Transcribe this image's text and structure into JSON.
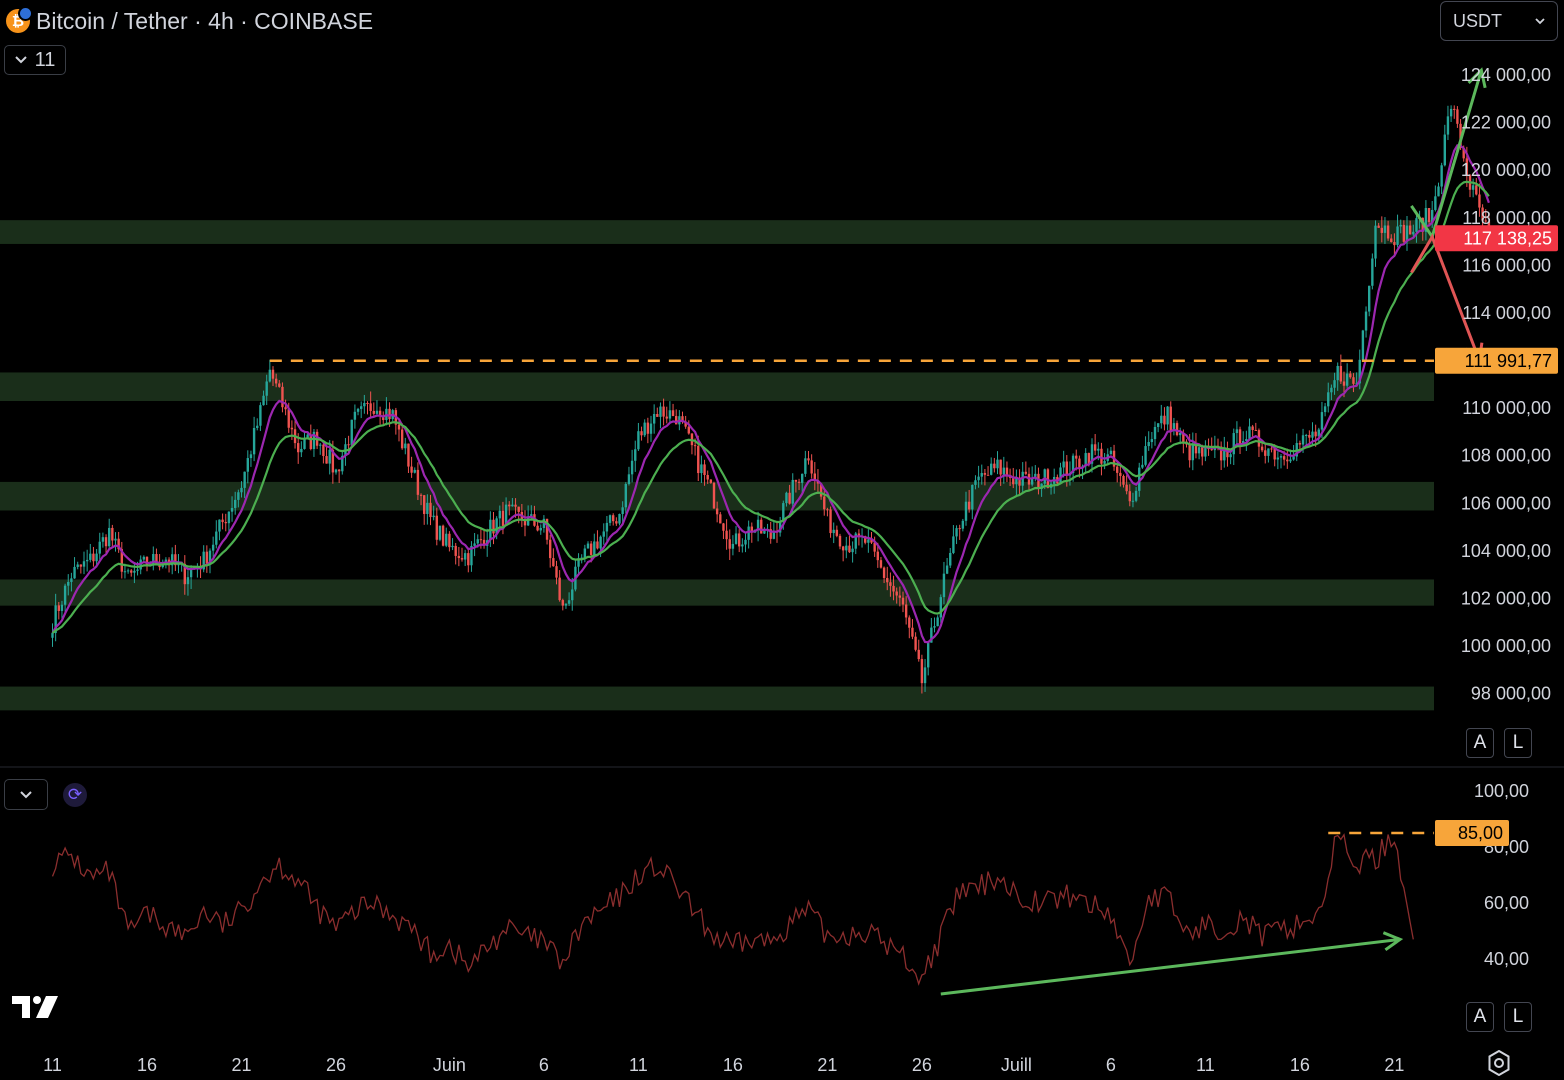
{
  "header": {
    "symbol_title": "Bitcoin / Tether · 4h · COINBASE",
    "indicator_count": "11",
    "currency": "USDT",
    "coin_icon": "bitcoin-icon",
    "coin_glyph": "₿"
  },
  "axis_buttons": {
    "auto": "A",
    "log": "L"
  },
  "colors": {
    "up": "#26a69a",
    "down": "#ef5350",
    "zone": "#1a2e1a",
    "ma_fast": "#9c27b0",
    "ma_slow": "#4caf50",
    "rsi": "#8b2e2e",
    "orange": "#f7a53a",
    "price_badge": "#f23645"
  },
  "chart_data": [
    {
      "type": "candlestick",
      "title": "Bitcoin / Tether · 4h · COINBASE",
      "ylim": [
        96500,
        125500
      ],
      "y_ticks": [
        "124 000,00",
        "122 000,00",
        "120 000,00",
        "118 000,00",
        "116 000,00",
        "114 000,00",
        "112 000,00",
        "110 000,00",
        "108 000,00",
        "106 000,00",
        "104 000,00",
        "102 000,00",
        "100 000,00",
        "98 000,00"
      ],
      "y_tick_values": [
        124000,
        122000,
        120000,
        118000,
        116000,
        114000,
        112000,
        110000,
        108000,
        106000,
        104000,
        102000,
        100000,
        98000
      ],
      "x_ticks": [
        "11",
        "16",
        "21",
        "26",
        "Juin",
        "6",
        "11",
        "16",
        "21",
        "26",
        "Juill",
        "6",
        "11",
        "16",
        "21"
      ],
      "x_tick_days": [
        0,
        5,
        10,
        15,
        21,
        26,
        31,
        36,
        41,
        46,
        51,
        56,
        61,
        66,
        71
      ],
      "x_start": "May 11",
      "last_price": 117138.25,
      "last_price_label": "117 138,25",
      "resistance_level": 111991.77,
      "resistance_label": "111 991,77",
      "resistance_start_day": 11.5,
      "zones": [
        [
          116900,
          117900
        ],
        [
          110300,
          111500
        ],
        [
          105700,
          106900
        ],
        [
          101700,
          102800
        ],
        [
          97300,
          98300
        ]
      ],
      "price_path": [
        [
          0,
          101000
        ],
        [
          1,
          103000
        ],
        [
          2,
          103600
        ],
        [
          3,
          104800
        ],
        [
          4,
          102800
        ],
        [
          5,
          103500
        ],
        [
          6,
          103700
        ],
        [
          7,
          103000
        ],
        [
          8,
          103600
        ],
        [
          9,
          105200
        ],
        [
          10,
          106800
        ],
        [
          11,
          109800
        ],
        [
          11.5,
          111600
        ],
        [
          12,
          110500
        ],
        [
          13,
          108300
        ],
        [
          14,
          108800
        ],
        [
          15,
          107300
        ],
        [
          16,
          109500
        ],
        [
          17,
          110200
        ],
        [
          18,
          109700
        ],
        [
          19,
          107400
        ],
        [
          20,
          105300
        ],
        [
          21,
          104100
        ],
        [
          22,
          103800
        ],
        [
          23,
          104800
        ],
        [
          24,
          105600
        ],
        [
          25,
          105300
        ],
        [
          26,
          105000
        ],
        [
          27,
          101500
        ],
        [
          28,
          103600
        ],
        [
          29,
          104600
        ],
        [
          30,
          105600
        ],
        [
          31,
          108800
        ],
        [
          32,
          109900
        ],
        [
          33,
          109700
        ],
        [
          34,
          108000
        ],
        [
          35,
          106200
        ],
        [
          36,
          104200
        ],
        [
          37,
          105000
        ],
        [
          38,
          104600
        ],
        [
          39,
          106300
        ],
        [
          40,
          108100
        ],
        [
          41,
          105300
        ],
        [
          42,
          104300
        ],
        [
          43,
          104400
        ],
        [
          44,
          103000
        ],
        [
          45,
          101600
        ],
        [
          46,
          98500
        ],
        [
          47,
          102200
        ],
        [
          48,
          105200
        ],
        [
          49,
          107000
        ],
        [
          50,
          107500
        ],
        [
          51,
          107000
        ],
        [
          52,
          106900
        ],
        [
          53,
          107200
        ],
        [
          54,
          107600
        ],
        [
          55,
          108200
        ],
        [
          56,
          107800
        ],
        [
          57,
          106000
        ],
        [
          58,
          108800
        ],
        [
          59,
          109700
        ],
        [
          60,
          108200
        ],
        [
          61,
          108000
        ],
        [
          62,
          108100
        ],
        [
          63,
          109000
        ],
        [
          64,
          108500
        ],
        [
          65,
          108000
        ],
        [
          66,
          108500
        ],
        [
          67,
          109000
        ],
        [
          68,
          111500
        ],
        [
          69,
          111000
        ],
        [
          70,
          117800
        ],
        [
          71,
          117300
        ],
        [
          72,
          117500
        ],
        [
          73,
          118200
        ],
        [
          74,
          122800
        ],
        [
          75,
          119400
        ],
        [
          76,
          117138
        ]
      ],
      "annotations": [
        {
          "type": "arrow",
          "color": "green",
          "from": [
            71.9,
            118500
          ],
          "via": [
            73,
            117200
          ],
          "to": [
            75.6,
            124200
          ]
        },
        {
          "type": "arrow",
          "color": "red",
          "from": [
            71.9,
            115700
          ],
          "via": [
            73,
            117200
          ],
          "to": [
            75.5,
            112000
          ]
        }
      ]
    },
    {
      "type": "line",
      "title": "",
      "ylim": [
        26,
        106
      ],
      "y_ticks": [
        "100,00",
        "80,00",
        "60,00",
        "40,00"
      ],
      "y_tick_values": [
        100,
        80,
        60,
        40
      ],
      "level": 85,
      "level_label": "85,00",
      "level_start_day": 67.5,
      "rsi_path": [
        [
          0,
          74
        ],
        [
          1,
          77
        ],
        [
          2,
          69
        ],
        [
          3,
          71
        ],
        [
          4,
          49
        ],
        [
          5,
          56
        ],
        [
          6,
          52
        ],
        [
          7,
          48
        ],
        [
          8,
          57
        ],
        [
          9,
          52
        ],
        [
          10,
          57
        ],
        [
          11,
          68
        ],
        [
          12,
          74
        ],
        [
          13,
          68
        ],
        [
          14,
          58
        ],
        [
          15,
          51
        ],
        [
          16,
          57
        ],
        [
          17,
          60
        ],
        [
          18,
          56
        ],
        [
          19,
          51
        ],
        [
          20,
          42
        ],
        [
          21,
          45
        ],
        [
          22,
          37
        ],
        [
          23,
          44
        ],
        [
          24,
          51
        ],
        [
          25,
          48
        ],
        [
          26,
          46
        ],
        [
          27,
          38
        ],
        [
          28,
          52
        ],
        [
          29,
          57
        ],
        [
          30,
          62
        ],
        [
          31,
          70
        ],
        [
          32,
          73
        ],
        [
          33,
          66
        ],
        [
          34,
          56
        ],
        [
          35,
          48
        ],
        [
          36,
          44
        ],
        [
          37,
          47
        ],
        [
          38,
          46
        ],
        [
          39,
          53
        ],
        [
          40,
          57
        ],
        [
          41,
          48
        ],
        [
          42,
          49
        ],
        [
          43,
          50
        ],
        [
          44,
          46
        ],
        [
          45,
          41
        ],
        [
          46,
          33
        ],
        [
          47,
          48
        ],
        [
          48,
          64
        ],
        [
          49,
          65
        ],
        [
          50,
          70
        ],
        [
          51,
          63
        ],
        [
          52,
          61
        ],
        [
          53,
          61
        ],
        [
          54,
          63
        ],
        [
          55,
          59
        ],
        [
          56,
          56
        ],
        [
          57,
          38
        ],
        [
          58,
          62
        ],
        [
          59,
          62
        ],
        [
          60,
          49
        ],
        [
          61,
          52
        ],
        [
          62,
          51
        ],
        [
          63,
          55
        ],
        [
          64,
          48
        ],
        [
          65,
          50
        ],
        [
          66,
          53
        ],
        [
          67,
          56
        ],
        [
          68,
          84
        ],
        [
          69,
          74
        ],
        [
          70,
          76
        ],
        [
          71,
          84
        ],
        [
          72,
          47
        ]
      ],
      "annotations": [
        {
          "type": "arrow",
          "color": "green",
          "from": [
            47,
            27.5
          ],
          "to": [
            71.3,
            47
          ]
        }
      ]
    }
  ]
}
